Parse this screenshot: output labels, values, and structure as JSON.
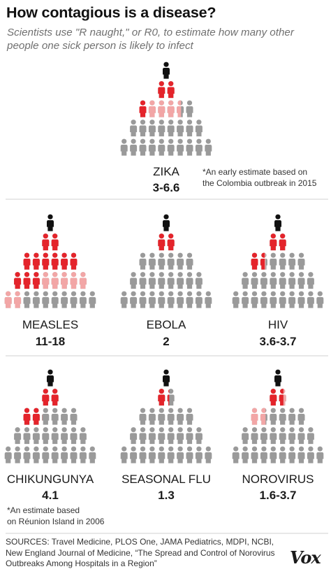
{
  "title": "How contagious is a disease?",
  "subtitle": "Scientists use \"R naught,\" or R0, to estimate how many other people one sick person is likely to infect",
  "colors": {
    "patient_zero": "#111111",
    "infected": "#e4242b",
    "possible": "#f2a6a6",
    "uninfected": "#9a9a9a"
  },
  "diseases": [
    {
      "id": "zika",
      "name": "ZIKA",
      "value": "3-6.6",
      "note_lines": [
        "*An early estimate based on",
        "the Colombia outbreak in 2015"
      ],
      "r_low": 3,
      "r_high": 6.6
    },
    {
      "id": "measles",
      "name": "MEASLES",
      "value": "11-18",
      "note_lines": [],
      "r_low": 11,
      "r_high": 18
    },
    {
      "id": "ebola",
      "name": "EBOLA",
      "value": "2",
      "note_lines": [],
      "r_low": 2,
      "r_high": 2
    },
    {
      "id": "hiv",
      "name": "HIV",
      "value": "3.6-3.7",
      "note_lines": [],
      "r_low": 3.6,
      "r_high": 3.7
    },
    {
      "id": "chikungunya",
      "name": "CHIKUNGUNYA",
      "value": "4.1",
      "note_lines": [
        "*An estimate based",
        "on Réunion Island in 2006"
      ],
      "r_low": 4.1,
      "r_high": 4.1
    },
    {
      "id": "seasonal-flu",
      "name": "SEASONAL FLU",
      "value": "1.3",
      "note_lines": [],
      "r_low": 1.3,
      "r_high": 1.3
    },
    {
      "id": "norovirus",
      "name": "NOROVIRUS",
      "value": "1.6-3.7",
      "note_lines": [],
      "r_low": 1.6,
      "r_high": 3.7
    }
  ],
  "sources": "SOURCES: Travel Medicine, PLOS One, JAMA Pediatrics, MDPI, NCBI, New England Journal of Medicine, “The Spread and Control of Norovirus Outbreaks Among Hospitals in a Region”",
  "brand": "Vox"
}
